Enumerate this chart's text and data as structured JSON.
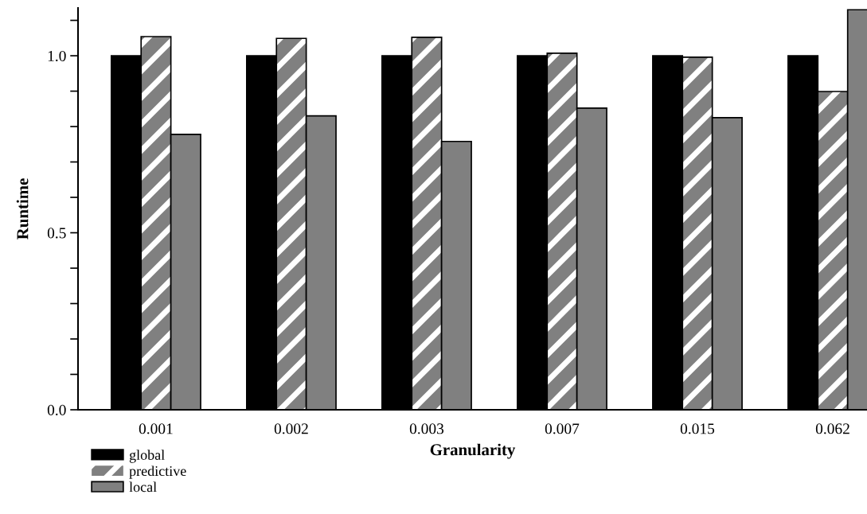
{
  "chart_data": {
    "type": "bar",
    "xlabel": "Granularity",
    "ylabel": "Runtime",
    "categories": [
      "0.001",
      "0.002",
      "0.003",
      "0.007",
      "0.015",
      "0.062"
    ],
    "series": [
      {
        "name": "global",
        "color": "#000000",
        "values": [
          1.0,
          1.0,
          1.0,
          1.0,
          1.0,
          1.0
        ]
      },
      {
        "name": "predictive",
        "color": "#808080",
        "values": [
          1.054,
          1.049,
          1.052,
          1.007,
          0.996,
          0.899
        ]
      },
      {
        "name": "local",
        "color": "#808080",
        "values": [
          0.778,
          0.83,
          0.758,
          0.852,
          0.825,
          1.13
        ]
      }
    ],
    "ylim": [
      0,
      1.135
    ],
    "yticks": [
      {
        "value": 0,
        "label": "0.0"
      },
      {
        "value": 0.1,
        "label": null
      },
      {
        "value": 0.2,
        "label": null
      },
      {
        "value": 0.3,
        "label": null
      },
      {
        "value": 0.4,
        "label": null
      },
      {
        "value": 0.5,
        "label": "0.5"
      },
      {
        "value": 0.6,
        "label": null
      },
      {
        "value": 0.7,
        "label": null
      },
      {
        "value": 0.8,
        "label": null
      },
      {
        "value": 0.9,
        "label": null
      },
      {
        "value": 1.0,
        "label": "1.0"
      },
      {
        "value": 1.1,
        "label": null
      }
    ],
    "grid": false,
    "legend": "bottom left"
  }
}
